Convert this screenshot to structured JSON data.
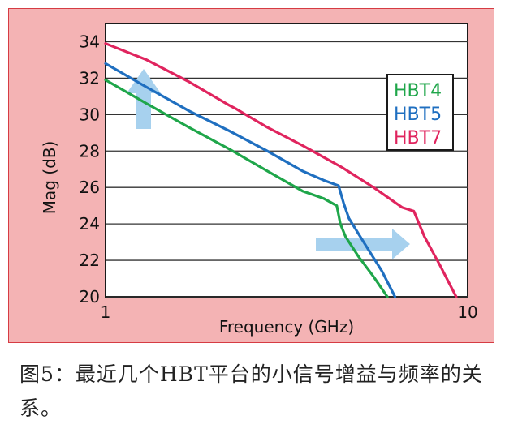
{
  "caption": "图5：最近几个HBT平台的小信号增益与频率的关系。",
  "colors": {
    "panel_bg": "#f4b3b4",
    "panel_border": "#d63b43",
    "plot_bg": "#ffffff",
    "arrow": "#a7d1ee"
  },
  "chart_data": {
    "type": "line",
    "xlabel": "Frequency (GHz)",
    "ylabel": "Mag (dB)",
    "x_scale": "log",
    "xlim": [
      1,
      10
    ],
    "ylim": [
      20,
      35
    ],
    "x_ticks": [
      1,
      10
    ],
    "x_tick_labels": [
      "1",
      "10"
    ],
    "y_ticks": [
      20,
      22,
      24,
      26,
      28,
      30,
      32,
      34
    ],
    "grid": "horizontal",
    "legend_position": "top-right",
    "series": [
      {
        "name": "HBT4",
        "color": "#1fa64a",
        "x": [
          1.0,
          1.3,
          1.7,
          2.2,
          2.8,
          3.5,
          4.0,
          4.35,
          4.45,
          4.6,
          5.0,
          5.5,
          6.0
        ],
        "y": [
          31.9,
          30.6,
          29.3,
          28.1,
          26.9,
          25.8,
          25.4,
          25.0,
          24.0,
          23.3,
          22.2,
          21.1,
          20.0
        ]
      },
      {
        "name": "HBT5",
        "color": "#1f6fc0",
        "x": [
          1.0,
          1.3,
          1.7,
          2.2,
          2.8,
          3.5,
          4.0,
          4.4,
          4.55,
          4.7,
          5.2,
          5.8,
          6.3
        ],
        "y": [
          32.8,
          31.5,
          30.2,
          29.1,
          28.0,
          26.9,
          26.4,
          26.1,
          25.1,
          24.3,
          22.9,
          21.4,
          20.0
        ]
      },
      {
        "name": "HBT7",
        "color": "#e0245e",
        "x": [
          1.0,
          1.3,
          1.7,
          2.2,
          2.3,
          2.8,
          3.5,
          4.5,
          5.5,
          6.6,
          7.1,
          7.6,
          8.4,
          9.3
        ],
        "y": [
          33.9,
          33.0,
          31.8,
          30.5,
          30.3,
          29.3,
          28.3,
          27.1,
          26.0,
          24.9,
          24.7,
          23.3,
          21.7,
          20.0
        ]
      }
    ]
  }
}
